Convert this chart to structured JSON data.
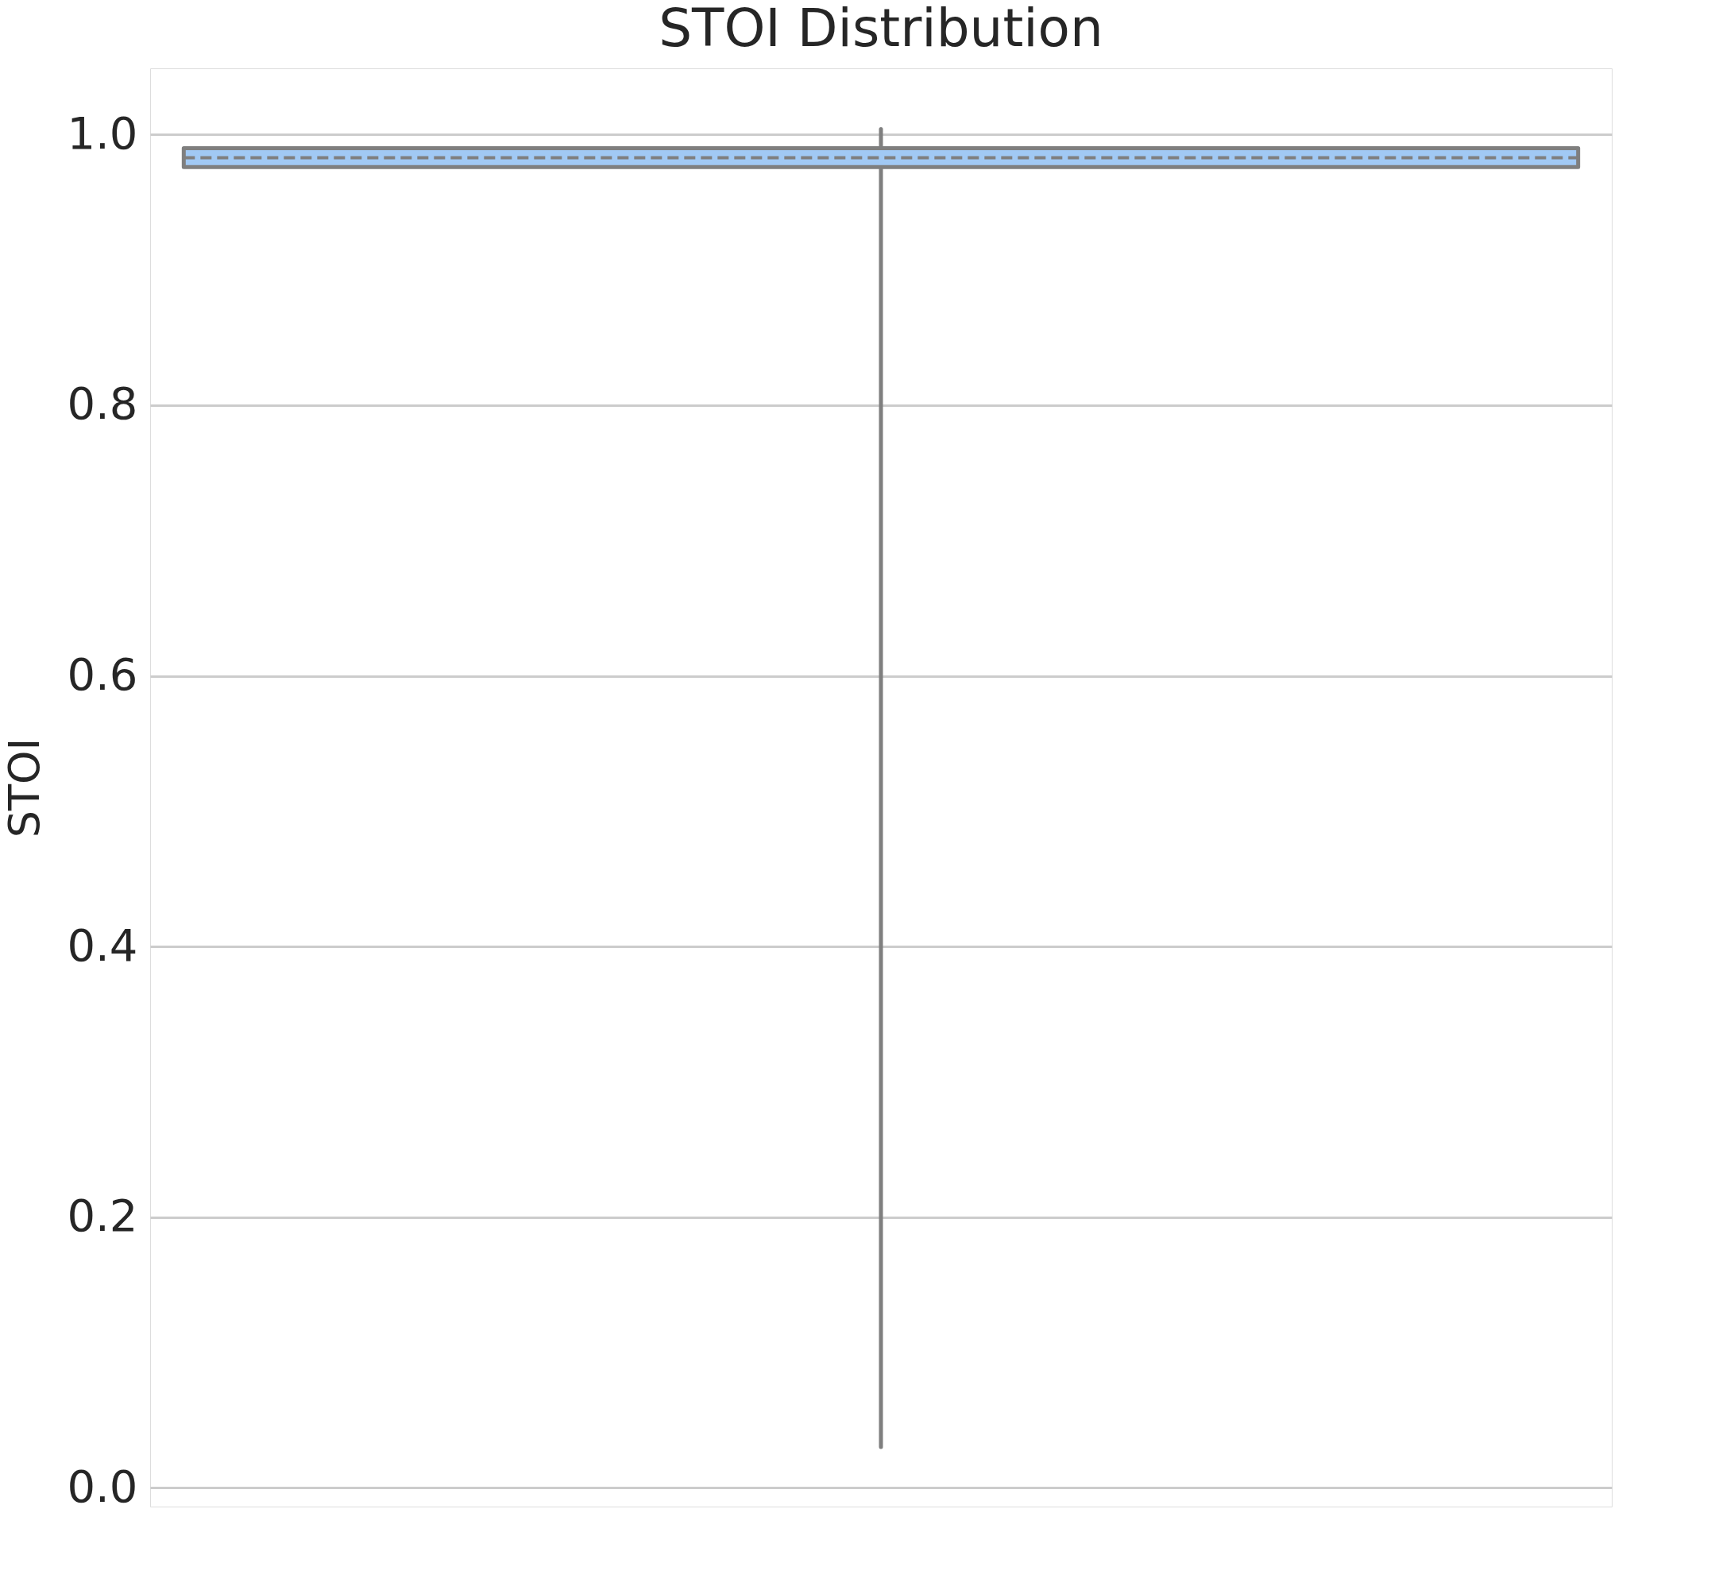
{
  "chart_data": {
    "type": "box",
    "title": "STOI Distribution",
    "ylabel": "STOI",
    "categories": [
      null
    ],
    "series": [
      {
        "color": "#a1c9f4",
        "boxes": [
          {
            "low": 0.03,
            "q1": 0.976,
            "median": 0.983,
            "q3": 0.99,
            "high": 1.004
          }
        ]
      }
    ],
    "ylim": [
      -0.014,
      1.049
    ],
    "yticks": [
      {
        "value": 0,
        "label": "0.0"
      },
      {
        "value": 0.2,
        "label": "0.2"
      },
      {
        "value": 0.4,
        "label": "0.4"
      },
      {
        "value": 0.6,
        "label": "0.6"
      },
      {
        "value": 0.8,
        "label": "0.8"
      },
      {
        "value": 1,
        "label": "1.0"
      }
    ],
    "grid": "y",
    "tick_labels": "y"
  }
}
